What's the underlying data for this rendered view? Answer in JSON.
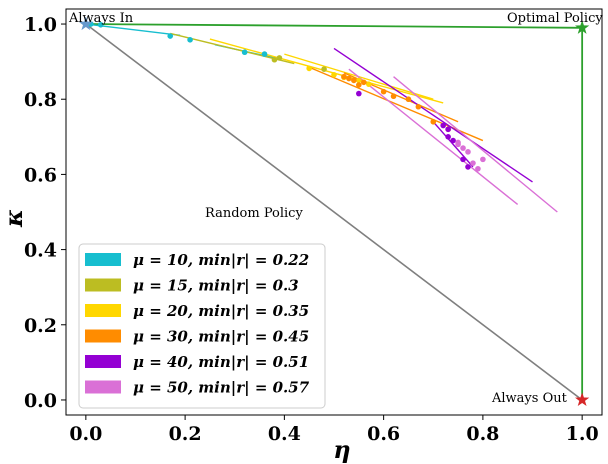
{
  "chart_data": {
    "type": "scatter",
    "xlabel": "η",
    "ylabel": "κ",
    "xlim": [
      -0.04,
      1.04
    ],
    "ylim": [
      -0.04,
      1.04
    ],
    "x_ticks": [
      0.0,
      0.2,
      0.4,
      0.6,
      0.8,
      1.0
    ],
    "y_ticks": [
      0.0,
      0.2,
      0.4,
      0.6,
      0.8,
      1.0
    ],
    "tick_labels_x": [
      "0.0",
      "0.2",
      "0.4",
      "0.6",
      "0.8",
      "1.0"
    ],
    "tick_labels_y": [
      "0.0",
      "0.2",
      "0.4",
      "0.6",
      "0.8",
      "1.0"
    ],
    "grid": false,
    "legend_position": "lower-left",
    "annotations": {
      "always_in": "Always In",
      "optimal_policy": "Optimal Policy",
      "random_policy": "Random Policy",
      "always_out": "Always Out"
    },
    "reference_lines": {
      "random": {
        "color": "#7f7f7f",
        "points": [
          [
            0,
            1
          ],
          [
            1,
            0
          ]
        ]
      },
      "optimal": {
        "color": "#2ca02c",
        "points": [
          [
            0,
            1
          ],
          [
            1,
            0.99
          ],
          [
            1,
            0
          ]
        ]
      }
    },
    "stars": [
      {
        "name": "always-in-star",
        "x": 0.0,
        "y": 1.0,
        "color": "#6699cc"
      },
      {
        "name": "optimal-star",
        "x": 1.0,
        "y": 0.99,
        "color": "#2ca02c"
      },
      {
        "name": "always-out-star",
        "x": 1.0,
        "y": 0.0,
        "color": "#d62728"
      }
    ],
    "series": [
      {
        "label": "μ = 10, min|r| = 0.22",
        "color": "#17becf",
        "points": [
          [
            0.01,
            1.0
          ],
          [
            0.03,
            0.998
          ],
          [
            0.17,
            0.968
          ],
          [
            0.21,
            0.958
          ],
          [
            0.32,
            0.925
          ],
          [
            0.36,
            0.92
          ]
        ],
        "fit_lines": [
          [
            [
              0.0,
              1.0
            ],
            [
              0.19,
              0.97
            ]
          ],
          [
            [
              0.26,
              0.945
            ],
            [
              0.38,
              0.91
            ]
          ]
        ]
      },
      {
        "label": "μ = 15, min|r| = 0.3",
        "color": "#bcbd22",
        "points": [
          [
            0.38,
            0.905
          ],
          [
            0.39,
            0.91
          ],
          [
            0.48,
            0.88
          ]
        ],
        "fit_lines": [
          [
            [
              0.17,
              0.975
            ],
            [
              0.42,
              0.895
            ]
          ]
        ]
      },
      {
        "label": "μ = 20, min|r| = 0.35",
        "color": "#ffd700",
        "points": [
          [
            0.45,
            0.882
          ],
          [
            0.5,
            0.865
          ],
          [
            0.52,
            0.858
          ],
          [
            0.55,
            0.85
          ],
          [
            0.57,
            0.84
          ]
        ],
        "fit_lines": [
          [
            [
              0.25,
              0.96
            ],
            [
              0.72,
              0.79
            ]
          ],
          [
            [
              0.4,
              0.92
            ],
            [
              0.7,
              0.8
            ]
          ]
        ]
      },
      {
        "label": "μ = 30, min|r| = 0.45",
        "color": "#ff8c00",
        "points": [
          [
            0.52,
            0.86
          ],
          [
            0.53,
            0.855
          ],
          [
            0.54,
            0.85
          ],
          [
            0.55,
            0.838
          ],
          [
            0.56,
            0.845
          ],
          [
            0.6,
            0.82
          ],
          [
            0.62,
            0.808
          ],
          [
            0.65,
            0.8
          ],
          [
            0.67,
            0.78
          ],
          [
            0.7,
            0.74
          ],
          [
            0.73,
            0.72
          ]
        ],
        "fit_lines": [
          [
            [
              0.45,
              0.885
            ],
            [
              0.8,
              0.69
            ]
          ],
          [
            [
              0.52,
              0.87
            ],
            [
              0.75,
              0.74
            ]
          ]
        ]
      },
      {
        "label": "μ = 40, min|r| = 0.51",
        "color": "#9400d3",
        "points": [
          [
            0.55,
            0.815
          ],
          [
            0.72,
            0.73
          ],
          [
            0.73,
            0.72
          ],
          [
            0.73,
            0.7
          ],
          [
            0.74,
            0.69
          ],
          [
            0.76,
            0.64
          ],
          [
            0.77,
            0.62
          ]
        ],
        "fit_lines": [
          [
            [
              0.5,
              0.935
            ],
            [
              0.9,
              0.58
            ]
          ],
          [
            [
              0.7,
              0.74
            ],
            [
              0.78,
              0.62
            ]
          ]
        ]
      },
      {
        "label": "μ = 50, min|r| = 0.57",
        "color": "#da70d6",
        "points": [
          [
            0.75,
            0.685
          ],
          [
            0.76,
            0.67
          ],
          [
            0.77,
            0.66
          ],
          [
            0.75,
            0.68
          ],
          [
            0.78,
            0.63
          ],
          [
            0.79,
            0.615
          ],
          [
            0.8,
            0.64
          ]
        ],
        "fit_lines": [
          [
            [
              0.62,
              0.86
            ],
            [
              0.95,
              0.5
            ]
          ],
          [
            [
              0.53,
              0.88
            ],
            [
              0.87,
              0.52
            ]
          ]
        ]
      }
    ]
  }
}
